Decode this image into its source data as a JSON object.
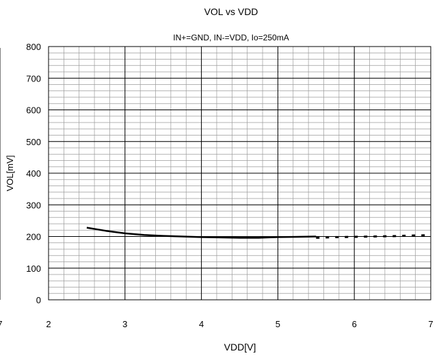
{
  "chart_data": {
    "type": "line",
    "title": "VOL vs VDD",
    "subtitle": "IN+=GND, IN-=VDD, Io=250mA",
    "xlabel": "VDD[V]",
    "ylabel": "VOL[mV]",
    "xlim": [
      2,
      7
    ],
    "ylim": [
      0,
      800
    ],
    "x_ticks": [
      "2",
      "3",
      "4",
      "5",
      "6",
      "7"
    ],
    "y_ticks": [
      "0",
      "100",
      "200",
      "300",
      "400",
      "500",
      "600",
      "700",
      "800"
    ],
    "edge_label": "7",
    "grid": true,
    "series": [
      {
        "style": "solid",
        "x": [
          2.5,
          2.75,
          3.0,
          3.25,
          3.5,
          3.75,
          4.0,
          4.25,
          4.5,
          4.75,
          5.0,
          5.25,
          5.5
        ],
        "y": [
          228,
          218,
          210,
          205,
          202,
          200,
          198,
          197,
          196,
          196,
          198,
          199,
          200
        ]
      },
      {
        "style": "dashed",
        "x": [
          5.5,
          5.75,
          6.0,
          6.25,
          6.5,
          6.75,
          7.0
        ],
        "y": [
          196,
          198,
          199,
          200,
          201,
          203,
          204
        ]
      }
    ]
  }
}
